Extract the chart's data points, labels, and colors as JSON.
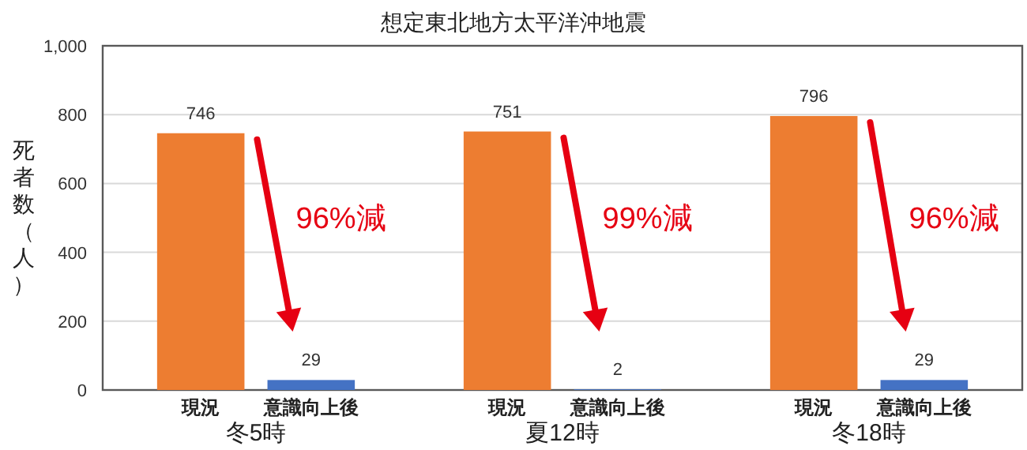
{
  "chart_data": {
    "type": "bar",
    "title": "想定東北地方太平洋沖地震",
    "ylabel": "死者数（人）",
    "categories": [
      "現況",
      "意識向上後",
      "現況",
      "意識向上後",
      "現況",
      "意識向上後"
    ],
    "values": [
      746,
      29,
      751,
      2,
      796,
      29
    ],
    "colors": [
      "#ed7d31",
      "#4472c4",
      "#ed7d31",
      "#4472c4",
      "#ed7d31",
      "#4472c4"
    ],
    "ylim": [
      0,
      1000
    ],
    "yticks": [
      0,
      200,
      400,
      600,
      800,
      {
        "value": 1000,
        "label": "1,000"
      }
    ],
    "grid": "y",
    "data_labels": true,
    "annotations": [
      "冬5時",
      "夏12時",
      "冬18時",
      "96%減",
      "99%減",
      "96%減"
    ]
  }
}
